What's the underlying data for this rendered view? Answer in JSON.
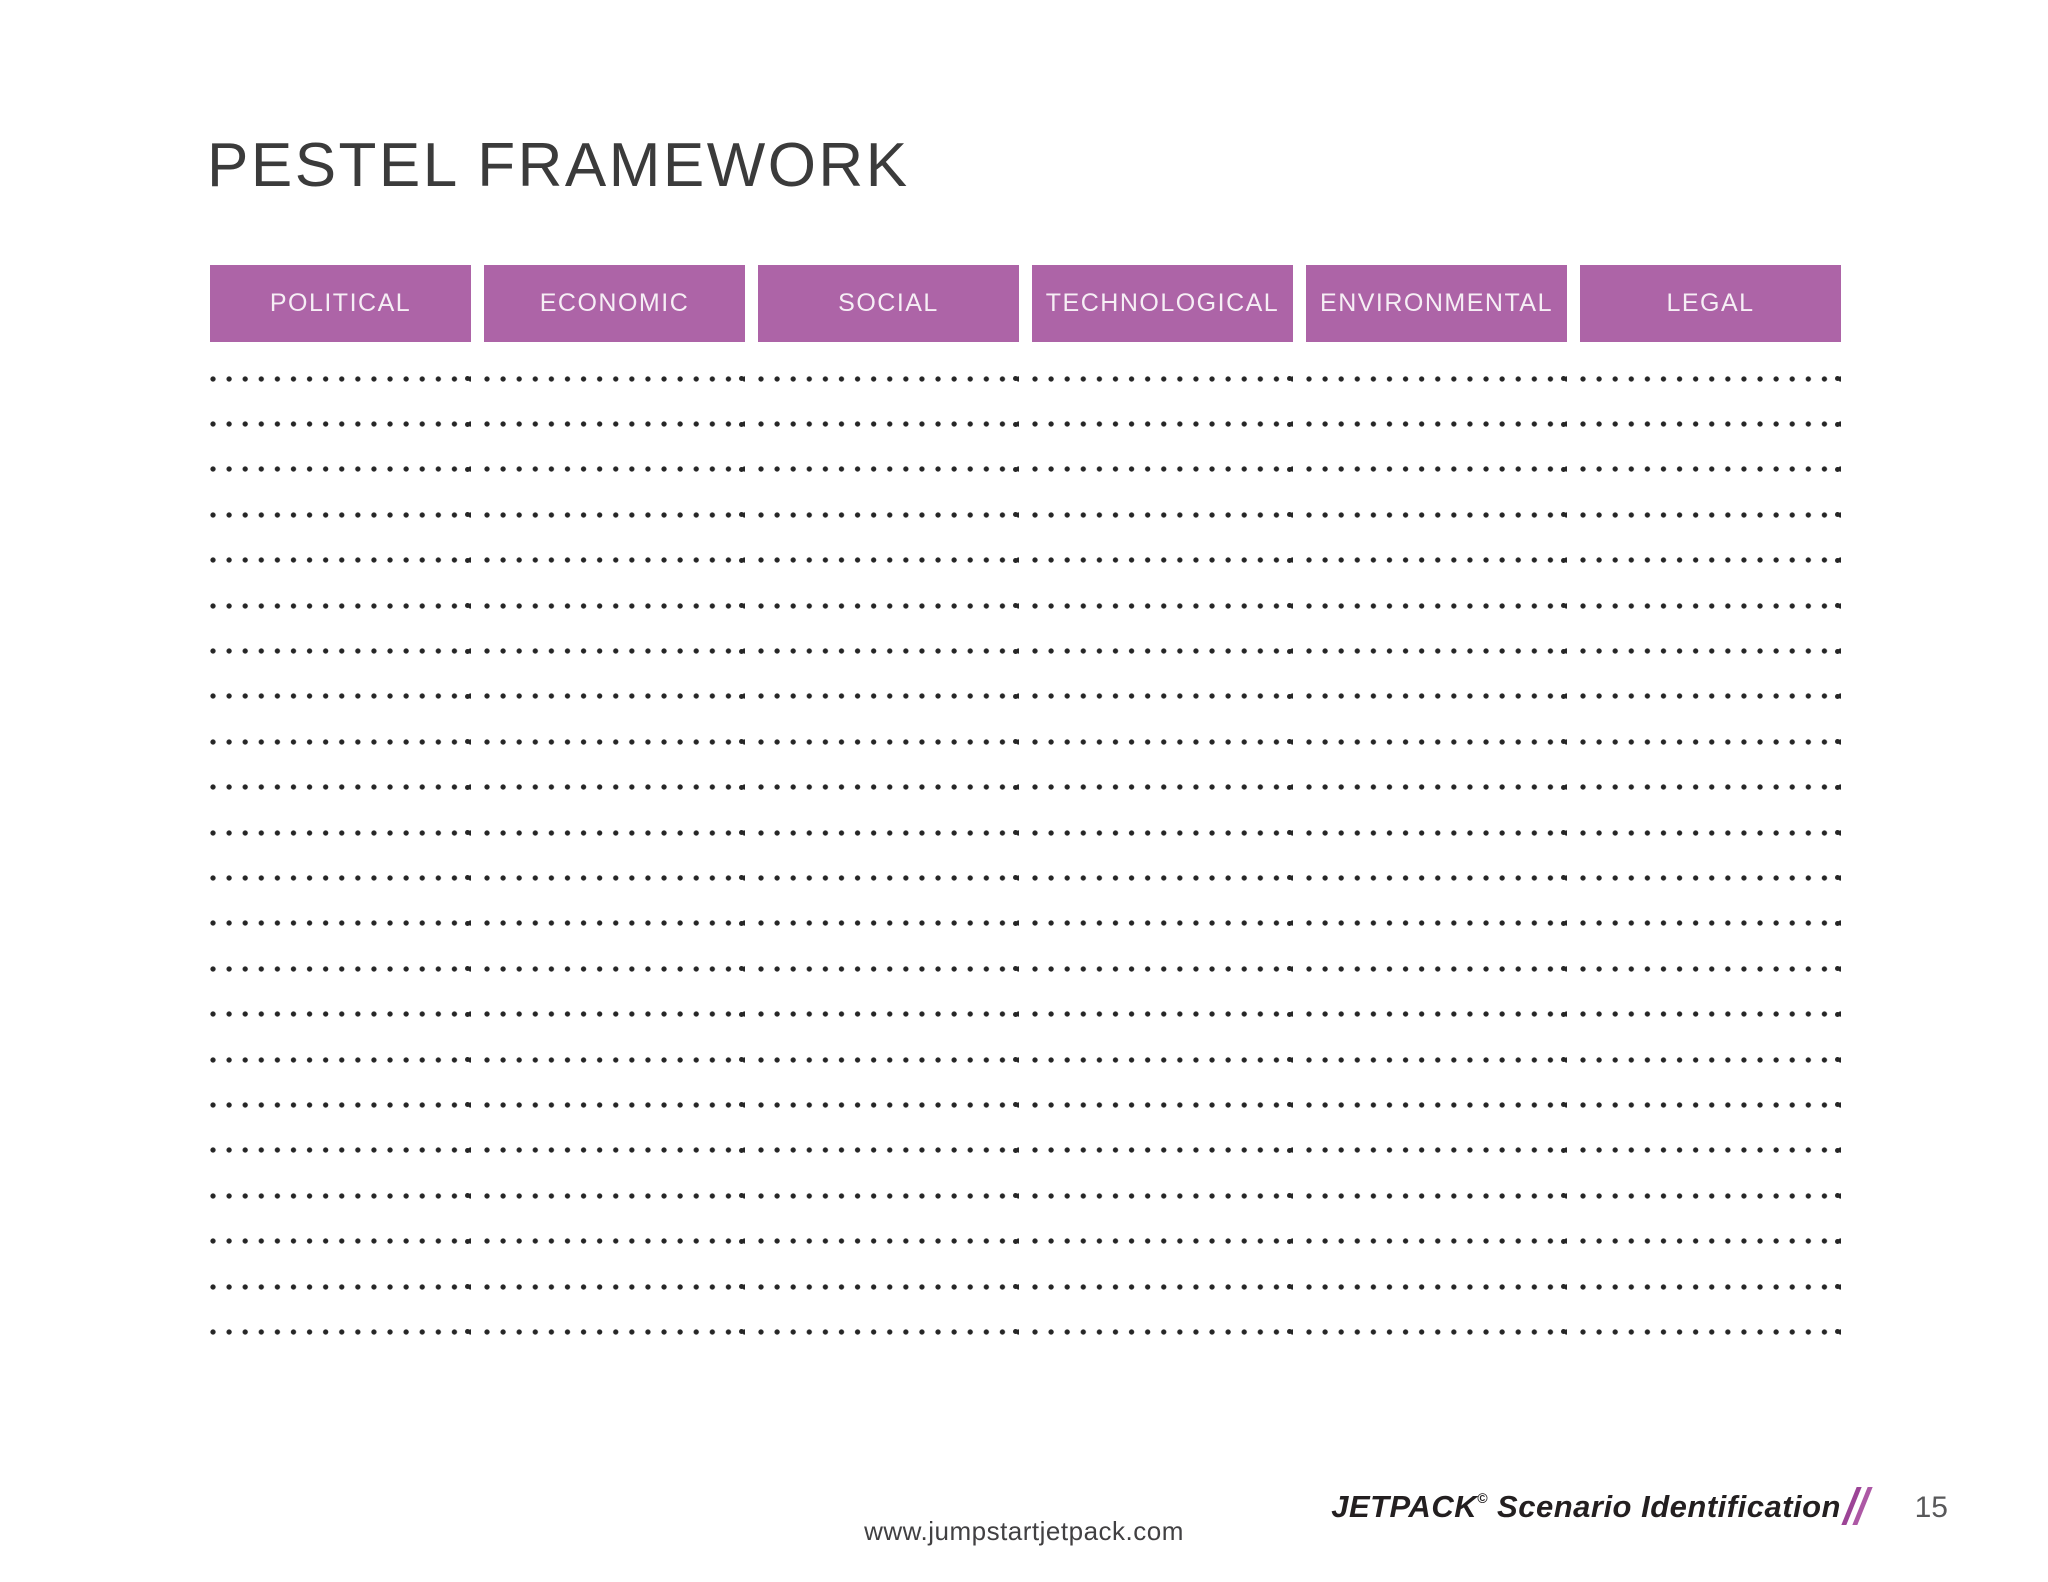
{
  "page": {
    "title": "PESTEL FRAMEWORK"
  },
  "table": {
    "headers": [
      "POLITICAL",
      "ECONOMIC",
      "SOCIAL",
      "TECHNOLOGICAL",
      "ENVIRONMENTAL",
      "LEGAL"
    ],
    "row_count": 22,
    "header_color": "#ad64a7",
    "dot_color": "#262626"
  },
  "footer": {
    "brand": "JETPACK",
    "brand_mark": "©",
    "brand_suffix": " Scenario Identification",
    "slash_color": "#9c4496",
    "page_number": "15",
    "website": "www.jumpstartjetpack.com"
  }
}
